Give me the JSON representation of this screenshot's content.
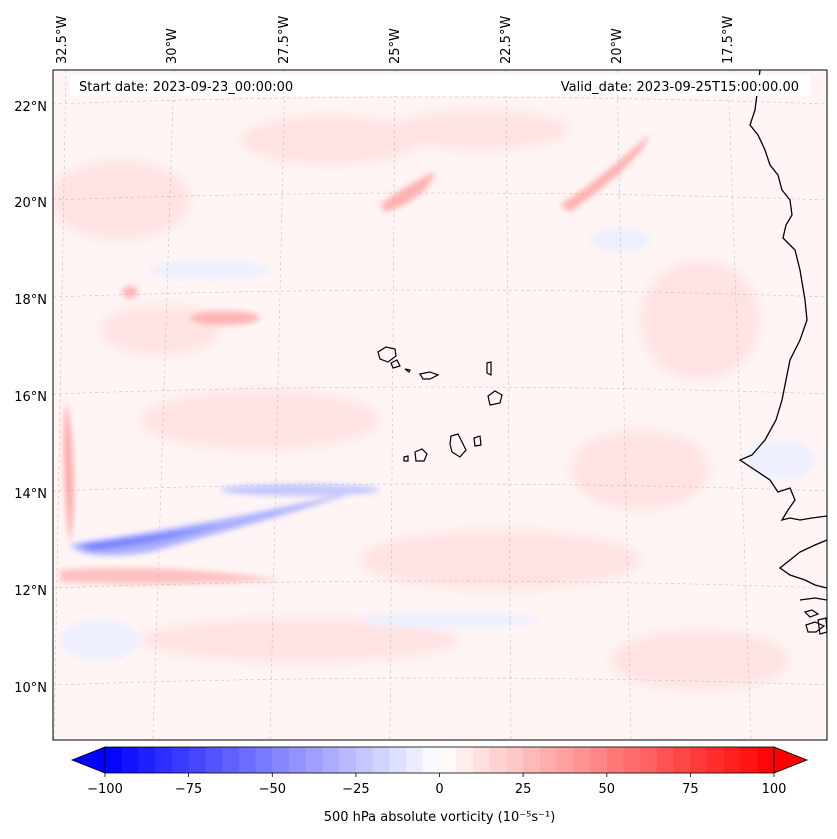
{
  "map": {
    "header_left": "Start date: 2023-09-23_00:00:00",
    "header_right": "Valid_date: 2023-09-25T15:00:00.00",
    "lon_labels": [
      "32.5°W",
      "30°W",
      "27.5°W",
      "25°W",
      "22.5°W",
      "20°W",
      "17.5°W"
    ],
    "lat_labels": [
      "22°N",
      "20°N",
      "18°N",
      "16°N",
      "14°N",
      "12°N",
      "10°N"
    ],
    "gridlines": "on"
  },
  "colorbar": {
    "label": "500 hPa absolute vorticity (10⁻⁵s⁻¹)",
    "ticks": [
      "−100",
      "−75",
      "−50",
      "−25",
      "0",
      "25",
      "50",
      "75",
      "100"
    ],
    "range": [
      -100,
      100
    ],
    "colormap": "bwr",
    "extend": "both",
    "colors": {
      "low": "#0000ff",
      "mid": "#ffffff",
      "high": "#ff0000"
    }
  }
}
